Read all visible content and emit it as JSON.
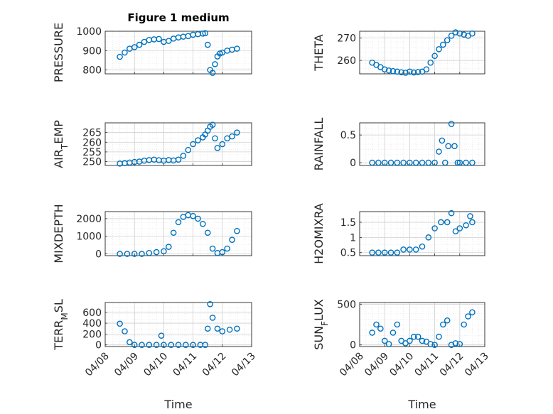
{
  "figure": {
    "title": "Figure 1 medium",
    "xlabel": "Time"
  },
  "colors": {
    "marker": "#0072BD",
    "axis": "#262626",
    "grid": "#dfdfdf",
    "frame": "#555555"
  },
  "chart_data": [
    {
      "type": "scatter",
      "ylabel": "PRESSURE",
      "sublabel": "",
      "xlim": [
        "2017-04-08",
        "2017-04-13"
      ],
      "ylim": [
        780,
        1000
      ],
      "yticks": [
        800,
        900,
        1000
      ],
      "xticks": [
        "04/08",
        "04/09",
        "04/10",
        "04/11",
        "04/12",
        "04/13"
      ],
      "grid": true,
      "legend": "none",
      "x": [
        "2017-04-08T12:00",
        "2017-04-08T16:00",
        "2017-04-08T20:00",
        "2017-04-09T00:00",
        "2017-04-09T04:00",
        "2017-04-09T08:00",
        "2017-04-09T12:00",
        "2017-04-09T16:00",
        "2017-04-09T20:00",
        "2017-04-10T00:00",
        "2017-04-10T04:00",
        "2017-04-10T08:00",
        "2017-04-10T12:00",
        "2017-04-10T16:00",
        "2017-04-10T20:00",
        "2017-04-11T00:00",
        "2017-04-11T04:00",
        "2017-04-11T08:00",
        "2017-04-11T10:00",
        "2017-04-11T12:00",
        "2017-04-11T14:00",
        "2017-04-11T16:00",
        "2017-04-11T18:00",
        "2017-04-11T20:00",
        "2017-04-11T22:00",
        "2017-04-12T00:00",
        "2017-04-12T04:00",
        "2017-04-12T08:00",
        "2017-04-12T12:00"
      ],
      "y": [
        868,
        890,
        910,
        918,
        930,
        945,
        955,
        958,
        960,
        945,
        950,
        962,
        968,
        972,
        975,
        982,
        985,
        988,
        990,
        930,
        800,
        785,
        830,
        870,
        885,
        890,
        900,
        905,
        910
      ]
    },
    {
      "type": "scatter",
      "ylabel": "THETA",
      "sublabel": "",
      "xlim": [
        "2017-04-08",
        "2017-04-13"
      ],
      "ylim": [
        254,
        273
      ],
      "yticks": [
        260,
        270
      ],
      "xticks": [
        "04/08",
        "04/09",
        "04/10",
        "04/11",
        "04/12",
        "04/13"
      ],
      "grid": true,
      "legend": "none",
      "x": [
        "2017-04-08T12:00",
        "2017-04-08T16:00",
        "2017-04-08T20:00",
        "2017-04-09T00:00",
        "2017-04-09T04:00",
        "2017-04-09T08:00",
        "2017-04-09T12:00",
        "2017-04-09T16:00",
        "2017-04-09T20:00",
        "2017-04-10T00:00",
        "2017-04-10T04:00",
        "2017-04-10T08:00",
        "2017-04-10T12:00",
        "2017-04-10T16:00",
        "2017-04-10T20:00",
        "2017-04-11T00:00",
        "2017-04-11T04:00",
        "2017-04-11T08:00",
        "2017-04-11T12:00",
        "2017-04-11T16:00",
        "2017-04-11T20:00",
        "2017-04-12T00:00",
        "2017-04-12T04:00",
        "2017-04-12T08:00",
        "2017-04-12T12:00"
      ],
      "y": [
        259,
        258,
        257,
        256,
        255.5,
        255.2,
        255,
        254.7,
        254.5,
        255,
        254.6,
        254.8,
        255,
        256,
        259,
        262,
        265,
        267,
        269,
        271,
        272.5,
        272,
        271.5,
        271,
        272
      ]
    },
    {
      "type": "scatter",
      "ylabel": "AIR",
      "sublabel": "T",
      "ylabel_tail": "EMP",
      "xlim": [
        "2017-04-08",
        "2017-04-13"
      ],
      "ylim": [
        248,
        270
      ],
      "yticks": [
        250,
        255,
        260,
        265
      ],
      "xticks": [
        "04/08",
        "04/09",
        "04/10",
        "04/11",
        "04/12",
        "04/13"
      ],
      "grid": true,
      "legend": "none",
      "x": [
        "2017-04-08T12:00",
        "2017-04-08T16:00",
        "2017-04-08T20:00",
        "2017-04-09T00:00",
        "2017-04-09T04:00",
        "2017-04-09T08:00",
        "2017-04-09T12:00",
        "2017-04-09T16:00",
        "2017-04-09T20:00",
        "2017-04-10T00:00",
        "2017-04-10T04:00",
        "2017-04-10T08:00",
        "2017-04-10T12:00",
        "2017-04-10T16:00",
        "2017-04-10T20:00",
        "2017-04-11T00:00",
        "2017-04-11T04:00",
        "2017-04-11T08:00",
        "2017-04-11T10:00",
        "2017-04-11T12:00",
        "2017-04-11T14:00",
        "2017-04-11T16:00",
        "2017-04-11T18:00",
        "2017-04-11T20:00",
        "2017-04-12T00:00",
        "2017-04-12T04:00",
        "2017-04-12T08:00",
        "2017-04-12T12:00"
      ],
      "y": [
        249,
        249.2,
        249.5,
        249.8,
        250,
        250.5,
        250.8,
        251,
        250.7,
        250.5,
        250.8,
        250.6,
        251,
        253,
        256,
        259,
        261,
        262.5,
        264,
        266,
        268,
        269,
        262,
        257,
        259,
        262,
        263,
        265
      ]
    },
    {
      "type": "scatter",
      "ylabel": "RAINFALL",
      "sublabel": "",
      "xlim": [
        "2017-04-08",
        "2017-04-13"
      ],
      "ylim": [
        -0.05,
        0.72
      ],
      "yticks": [
        0,
        0.5
      ],
      "xticks": [
        "04/08",
        "04/09",
        "04/10",
        "04/11",
        "04/12",
        "04/13"
      ],
      "grid": true,
      "legend": "none",
      "x": [
        "2017-04-08T12:00",
        "2017-04-08T18:00",
        "2017-04-09T00:00",
        "2017-04-09T06:00",
        "2017-04-09T12:00",
        "2017-04-09T18:00",
        "2017-04-10T00:00",
        "2017-04-10T06:00",
        "2017-04-10T12:00",
        "2017-04-10T18:00",
        "2017-04-11T00:00",
        "2017-04-11T04:00",
        "2017-04-11T07:00",
        "2017-04-11T10:00",
        "2017-04-11T13:00",
        "2017-04-11T16:00",
        "2017-04-11T19:00",
        "2017-04-11T22:00",
        "2017-04-12T00:00",
        "2017-04-12T06:00",
        "2017-04-12T12:00"
      ],
      "y": [
        0,
        0,
        0,
        0,
        0,
        0,
        0,
        0,
        0,
        0,
        0,
        0.2,
        0.4,
        0,
        0.3,
        0.7,
        0.3,
        0,
        0,
        0,
        0
      ]
    },
    {
      "type": "scatter",
      "ylabel": "MIXDEPTH",
      "sublabel": "",
      "xlim": [
        "2017-04-08",
        "2017-04-13"
      ],
      "ylim": [
        -100,
        2400
      ],
      "yticks": [
        0,
        1000,
        2000
      ],
      "xticks": [
        "04/08",
        "04/09",
        "04/10",
        "04/11",
        "04/12",
        "04/13"
      ],
      "grid": true,
      "legend": "none",
      "x": [
        "2017-04-08T12:00",
        "2017-04-08T18:00",
        "2017-04-09T00:00",
        "2017-04-09T06:00",
        "2017-04-09T12:00",
        "2017-04-09T18:00",
        "2017-04-10T00:00",
        "2017-04-10T04:00",
        "2017-04-10T08:00",
        "2017-04-10T12:00",
        "2017-04-10T16:00",
        "2017-04-10T20:00",
        "2017-04-11T00:00",
        "2017-04-11T04:00",
        "2017-04-11T08:00",
        "2017-04-11T12:00",
        "2017-04-11T16:00",
        "2017-04-11T20:00",
        "2017-04-12T00:00",
        "2017-04-12T04:00",
        "2017-04-12T08:00",
        "2017-04-12T12:00"
      ],
      "y": [
        0,
        0,
        0,
        0,
        50,
        100,
        150,
        400,
        1200,
        1800,
        2100,
        2200,
        2150,
        2000,
        1700,
        1200,
        300,
        50,
        100,
        300,
        800,
        1300
      ]
    },
    {
      "type": "scatter",
      "ylabel": "H2OMIXRA",
      "sublabel": "",
      "xlim": [
        "2017-04-08",
        "2017-04-13"
      ],
      "ylim": [
        0.4,
        1.85
      ],
      "yticks": [
        0.5,
        1,
        1.5
      ],
      "xticks": [
        "04/08",
        "04/09",
        "04/10",
        "04/11",
        "04/12",
        "04/13"
      ],
      "grid": true,
      "legend": "none",
      "x": [
        "2017-04-08T12:00",
        "2017-04-08T18:00",
        "2017-04-09T00:00",
        "2017-04-09T06:00",
        "2017-04-09T12:00",
        "2017-04-09T18:00",
        "2017-04-10T00:00",
        "2017-04-10T06:00",
        "2017-04-10T12:00",
        "2017-04-10T18:00",
        "2017-04-11T00:00",
        "2017-04-11T06:00",
        "2017-04-11T12:00",
        "2017-04-11T16:00",
        "2017-04-11T20:00",
        "2017-04-12T00:00",
        "2017-04-12T06:00",
        "2017-04-12T10:00",
        "2017-04-12T12:00"
      ],
      "y": [
        0.5,
        0.5,
        0.5,
        0.5,
        0.5,
        0.6,
        0.6,
        0.6,
        0.7,
        1.0,
        1.3,
        1.5,
        1.5,
        1.8,
        1.2,
        1.3,
        1.4,
        1.7,
        1.5
      ]
    },
    {
      "type": "scatter",
      "ylabel": "TERR",
      "sublabel": "M",
      "ylabel_tail": "SL",
      "xlim": [
        "2017-04-08",
        "2017-04-13"
      ],
      "ylim": [
        -30,
        780
      ],
      "yticks": [
        0,
        200,
        400,
        600
      ],
      "xticks": [
        "04/08",
        "04/09",
        "04/10",
        "04/11",
        "04/12",
        "04/13"
      ],
      "grid": true,
      "legend": "none",
      "x": [
        "2017-04-08T12:00",
        "2017-04-08T16:00",
        "2017-04-08T20:00",
        "2017-04-09T00:00",
        "2017-04-09T06:00",
        "2017-04-09T12:00",
        "2017-04-09T18:00",
        "2017-04-09T22:00",
        "2017-04-10T00:00",
        "2017-04-10T06:00",
        "2017-04-10T12:00",
        "2017-04-10T18:00",
        "2017-04-11T00:00",
        "2017-04-11T06:00",
        "2017-04-11T10:00",
        "2017-04-11T12:00",
        "2017-04-11T14:00",
        "2017-04-11T16:00",
        "2017-04-11T20:00",
        "2017-04-12T00:00",
        "2017-04-12T06:00",
        "2017-04-12T12:00"
      ],
      "y": [
        390,
        250,
        50,
        0,
        0,
        0,
        0,
        170,
        0,
        0,
        0,
        0,
        0,
        0,
        0,
        300,
        750,
        500,
        300,
        250,
        280,
        300
      ]
    },
    {
      "type": "scatter",
      "ylabel": "SUN",
      "sublabel": "F",
      "ylabel_tail": "LUX",
      "xlim": [
        "2017-04-08",
        "2017-04-13"
      ],
      "ylim": [
        -20,
        520
      ],
      "yticks": [
        0,
        500
      ],
      "xticks": [
        "04/08",
        "04/09",
        "04/10",
        "04/11",
        "04/12",
        "04/13"
      ],
      "grid": true,
      "legend": "none",
      "x": [
        "2017-04-08T12:00",
        "2017-04-08T16:00",
        "2017-04-08T20:00",
        "2017-04-09T00:00",
        "2017-04-09T04:00",
        "2017-04-09T08:00",
        "2017-04-09T12:00",
        "2017-04-09T16:00",
        "2017-04-09T20:00",
        "2017-04-10T00:00",
        "2017-04-10T04:00",
        "2017-04-10T08:00",
        "2017-04-10T12:00",
        "2017-04-10T16:00",
        "2017-04-10T20:00",
        "2017-04-11T00:00",
        "2017-04-11T04:00",
        "2017-04-11T08:00",
        "2017-04-11T12:00",
        "2017-04-11T16:00",
        "2017-04-11T20:00",
        "2017-04-12T00:00",
        "2017-04-12T04:00",
        "2017-04-12T08:00",
        "2017-04-12T12:00"
      ],
      "y": [
        150,
        250,
        200,
        50,
        10,
        150,
        250,
        50,
        20,
        50,
        100,
        100,
        50,
        40,
        10,
        0,
        100,
        250,
        300,
        0,
        20,
        10,
        250,
        350,
        400
      ]
    }
  ]
}
